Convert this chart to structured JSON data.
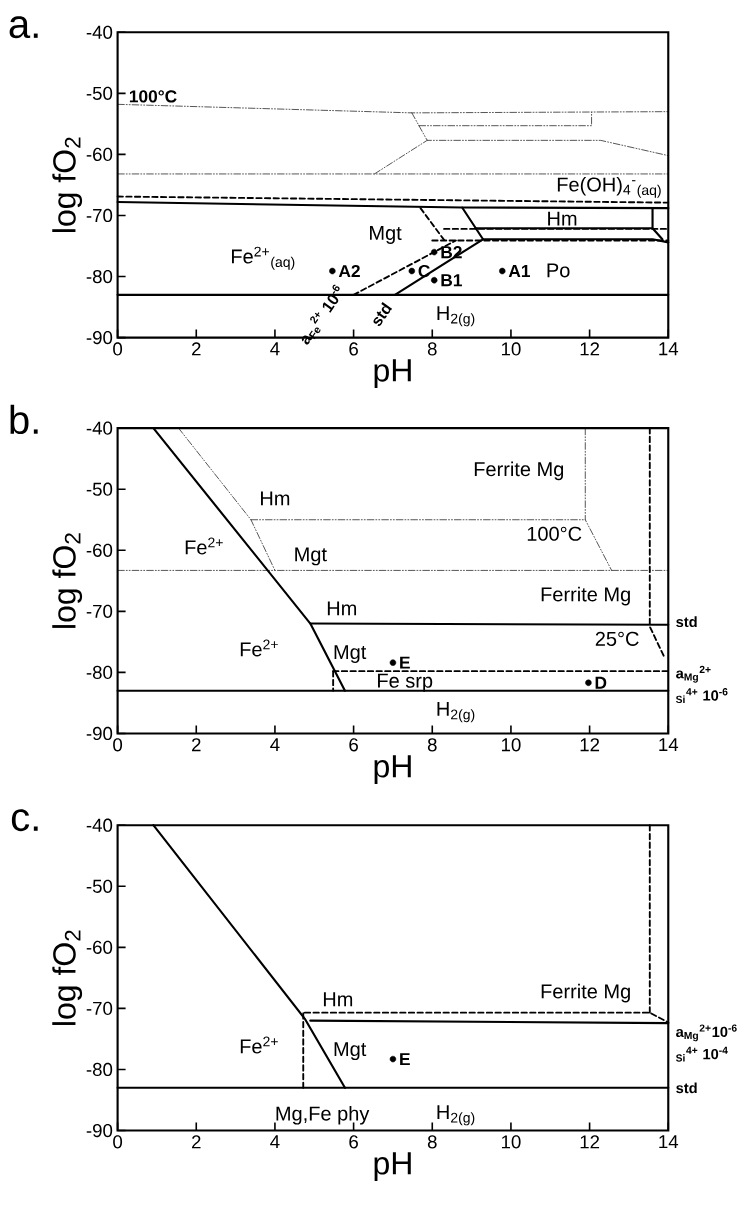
{
  "chart_data": [
    {
      "type": "line",
      "title": "a.",
      "xlabel": "pH",
      "ylabel": "log fO$_{2}$",
      "xlim": [
        0,
        14
      ],
      "ylim": [
        -90,
        -40
      ],
      "xticks": [
        0,
        2,
        4,
        6,
        8,
        10,
        12,
        14
      ],
      "yticks": [
        -90,
        -80,
        -70,
        -60,
        -50,
        -40
      ],
      "grid": false,
      "series": [
        {
          "color": "#000000",
          "line_style": "solid",
          "x": [
            0,
            8.76,
            14
          ],
          "values": [
            -67.8,
            -68.7,
            -68.8
          ]
        },
        {
          "color": "#000000",
          "line_style": "solid",
          "x": [
            8.76,
            9.29
          ],
          "values": [
            -68.7,
            -73.9
          ]
        },
        {
          "color": "#000000",
          "line_style": "solid",
          "x": [
            9.1,
            13.6
          ],
          "values": [
            -72.1,
            -72.1
          ]
        },
        {
          "color": "#000000",
          "line_style": "solid",
          "x": [
            7.05,
            9.29,
            13.6,
            14
          ],
          "values": [
            -83,
            -73.9,
            -73.9,
            -74.4
          ]
        },
        {
          "color": "#000000",
          "line_style": "solid",
          "x": [
            13.6,
            13.6,
            13.85
          ],
          "values": [
            -68.8,
            -72.1,
            -73.9
          ]
        },
        {
          "color": "#000000",
          "line_style": "solid",
          "x": [
            0,
            14
          ],
          "values": [
            -83,
            -83
          ]
        },
        {
          "color": "#000000",
          "line_style": "dashed",
          "x": [
            0,
            14
          ],
          "values": [
            -66.9,
            -67.9
          ]
        },
        {
          "color": "#000000",
          "line_style": "dashed",
          "x": [
            7.7,
            8.3
          ],
          "values": [
            -68.8,
            -74
          ]
        },
        {
          "color": "#000000",
          "line_style": "dashed",
          "x": [
            6.0,
            8.6
          ],
          "values": [
            -83,
            -74.1
          ]
        },
        {
          "color": "#000000",
          "line_style": "dashed",
          "x": [
            8.3,
            14
          ],
          "values": [
            -72.2,
            -72.2
          ]
        },
        {
          "color": "#000000",
          "line_style": "dashed",
          "x": [
            8.0,
            14
          ],
          "values": [
            -74.1,
            -74.1
          ]
        },
        {
          "color": "#000000",
          "line_style": "dotted",
          "x": [
            0,
            7.48,
            14
          ],
          "values": [
            -51.8,
            -53.2,
            -53.0
          ]
        },
        {
          "color": "#000000",
          "line_style": "dotted",
          "x": [
            7.48,
            7.87,
            12.28,
            14
          ],
          "values": [
            -53.2,
            -57.7,
            -57.7,
            -60.2
          ]
        },
        {
          "color": "#000000",
          "line_style": "dotted",
          "x": [
            7.66,
            12.05,
            12.05
          ],
          "values": [
            -55.3,
            -55.3,
            -53.1
          ]
        },
        {
          "color": "#000000",
          "line_style": "dotted",
          "x": [
            0,
            14
          ],
          "values": [
            -63.2,
            -63.2
          ]
        },
        {
          "color": "#000000",
          "line_style": "dotted",
          "x": [
            6.53,
            7.87
          ],
          "values": [
            -63.2,
            -57.7
          ]
        },
        {
          "type": "scatter",
          "marker": "circle",
          "color": "#000000",
          "x": [
            5.46,
            7.48,
            8.05,
            8.05,
            9.78
          ],
          "values": [
            -79.1,
            -79.1,
            -76.0,
            -80.6,
            -79.1
          ]
        }
      ],
      "annotations": [
        "100°C",
        "Fe(OH)$_{4}$$^{-}$$_{(aq)}$",
        "Hm",
        "Mgt",
        "Fe$^{2+}$$_{(aq)}$",
        "Po",
        "H$_{2(g)}$",
        "a$_{Fe}$$^{2+}$ 10$^{-6}$",
        "std",
        {
          "text": "A2",
          "x": 5.46,
          "y": -79.1
        },
        {
          "text": "C",
          "x": 7.48,
          "y": -79.1
        },
        {
          "text": "B2",
          "x": 8.05,
          "y": -76.0
        },
        {
          "text": "B1",
          "x": 8.05,
          "y": -80.6
        },
        {
          "text": "A1",
          "x": 9.78,
          "y": -79.1
        }
      ]
    },
    {
      "type": "line",
      "title": "b.",
      "xlabel": "pH",
      "ylabel": "log fO$_{2}$",
      "xlim": [
        0,
        14
      ],
      "ylim": [
        -90,
        -40
      ],
      "xticks": [
        0,
        2,
        4,
        6,
        8,
        10,
        12,
        14
      ],
      "yticks": [
        -90,
        -80,
        -70,
        -60,
        -50,
        -40
      ],
      "grid": false,
      "series": [
        {
          "color": "#000000",
          "line_style": "solid",
          "x": [
            0.91,
            4.9,
            5.78
          ],
          "values": [
            -40,
            -72,
            -83
          ]
        },
        {
          "color": "#000000",
          "line_style": "solid",
          "x": [
            4.9,
            14
          ],
          "values": [
            -72,
            -72.2
          ]
        },
        {
          "color": "#000000",
          "line_style": "solid",
          "x": [
            0,
            14
          ],
          "values": [
            -83,
            -83
          ]
        },
        {
          "color": "#000000",
          "line_style": "dashed",
          "x": [
            13.53,
            13.53,
            13.9
          ],
          "values": [
            -40,
            -72.5,
            -77.5
          ]
        },
        {
          "color": "#000000",
          "line_style": "dashed",
          "x": [
            5.48,
            14
          ],
          "values": [
            -79.8,
            -79.8
          ]
        },
        {
          "color": "#000000",
          "line_style": "dashed",
          "x": [
            5.48,
            5.48
          ],
          "values": [
            -79.8,
            -83
          ]
        },
        {
          "color": "#000000",
          "line_style": "dotted",
          "x": [
            1.55,
            3.39,
            4.0
          ],
          "values": [
            -40,
            -55,
            -63.3
          ]
        },
        {
          "color": "#000000",
          "line_style": "dotted",
          "x": [
            3.39,
            11.89
          ],
          "values": [
            -55,
            -55
          ]
        },
        {
          "color": "#000000",
          "line_style": "dotted",
          "x": [
            11.89,
            11.89,
            12.56
          ],
          "values": [
            -40,
            -55,
            -63.3
          ]
        },
        {
          "color": "#000000",
          "line_style": "dotted",
          "x": [
            0,
            14
          ],
          "values": [
            -63.3,
            -63.3
          ]
        },
        {
          "type": "scatter",
          "marker": "circle",
          "color": "#000000",
          "x": [
            7.0,
            11.97
          ],
          "values": [
            -78.4,
            -81.7
          ]
        }
      ],
      "annotations": [
        "Ferrite Mg",
        "Hm",
        "Fe$^{2+}$",
        "Mgt",
        "100°C",
        "Hm",
        "Ferrite Mg",
        "Fe$^{2+}$",
        "Mgt",
        "25°C",
        "Fe srp",
        "H$_{2(g)}$",
        "std",
        "a$_{Mg}$$^{2+}$",
        "$_{Si}$$^{4+}$ 10$^{-6}$",
        {
          "text": "E",
          "x": 7.0,
          "y": -78.4
        },
        {
          "text": "D",
          "x": 11.97,
          "y": -81.7
        }
      ]
    },
    {
      "type": "line",
      "title": "c.",
      "xlabel": "pH",
      "ylabel": "log fO$_{2}$",
      "xlim": [
        0,
        14
      ],
      "ylim": [
        -90,
        -40
      ],
      "xticks": [
        0,
        2,
        4,
        6,
        8,
        10,
        12,
        14
      ],
      "yticks": [
        -90,
        -80,
        -70,
        -60,
        -50,
        -40
      ],
      "grid": false,
      "series": [
        {
          "color": "#000000",
          "line_style": "solid",
          "x": [
            0.91,
            4.76,
            5.78
          ],
          "values": [
            -40,
            -71.7,
            -83
          ]
        },
        {
          "color": "#000000",
          "line_style": "solid",
          "x": [
            4.9,
            14
          ],
          "values": [
            -72.0,
            -72.4
          ]
        },
        {
          "color": "#000000",
          "line_style": "solid",
          "x": [
            0,
            14
          ],
          "values": [
            -83,
            -83
          ]
        },
        {
          "color": "#000000",
          "line_style": "dashed",
          "x": [
            4.76,
            13.53,
            14
          ],
          "values": [
            -70.7,
            -70.7,
            -72.3
          ]
        },
        {
          "color": "#000000",
          "line_style": "dashed",
          "x": [
            13.53,
            13.53
          ],
          "values": [
            -40,
            -70.7
          ]
        },
        {
          "color": "#000000",
          "line_style": "dashed",
          "x": [
            4.72,
            4.72
          ],
          "values": [
            -70.8,
            -83
          ]
        },
        {
          "type": "scatter",
          "marker": "circle",
          "color": "#000000",
          "x": [
            7.0
          ],
          "values": [
            -78.3
          ]
        }
      ],
      "annotations": [
        "Hm",
        "Ferrite Mg",
        "Fe$^{2+}$",
        "Mgt",
        "Mg,Fe phy",
        "H$_{2(g)}$",
        "a$_{Mg}$$^{2+}$10$^{-6}$",
        "$_{Si}$$^{4+}$ 10$^{-4}$",
        "std",
        {
          "text": "E",
          "x": 7.0,
          "y": -78.3
        }
      ]
    }
  ]
}
